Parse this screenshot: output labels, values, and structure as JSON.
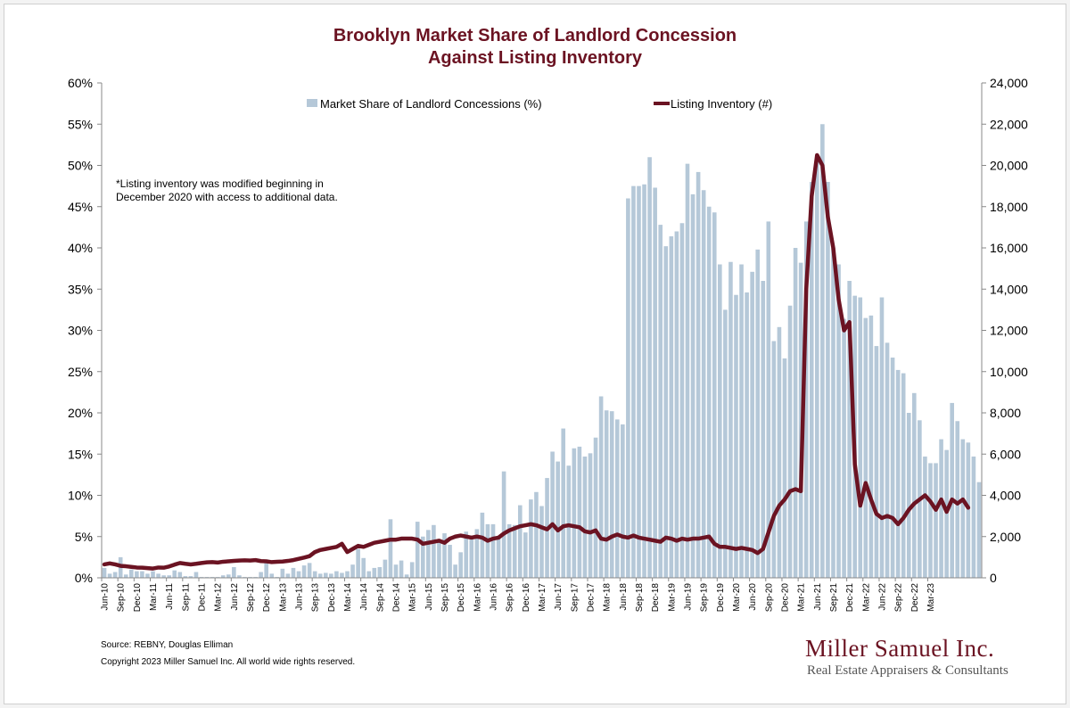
{
  "chart_data": {
    "type": "bar",
    "title_line1": "Brooklyn Market Share of Landlord Concession",
    "title_line2": "Against Listing Inventory",
    "note_line1": "*Listing inventory was modified beginning in",
    "note_line2": "December 2020 with access to additional data.",
    "source": "Source: REBNY, Douglas Elliman",
    "copyright": "Copyright 2023 Miller Samuel Inc.  All world wide rights reserved.",
    "brand": "Miller Samuel Inc.",
    "tagline": "Real Estate Appraisers & Consultants",
    "legend_position": "top-center",
    "grid": false,
    "colors": {
      "bars": "#b5c8d8",
      "line": "#6b1322",
      "title": "#6b1322"
    },
    "y_left": {
      "ylim": [
        0,
        60
      ],
      "ticks": [
        "0%",
        "5%",
        "10%",
        "15%",
        "20%",
        "25%",
        "30%",
        "35%",
        "40%",
        "45%",
        "50%",
        "55%",
        "60%"
      ]
    },
    "y_right": {
      "ylim": [
        0,
        24000
      ],
      "ticks": [
        "0",
        "2,000",
        "4,000",
        "6,000",
        "8,000",
        "10,000",
        "12,000",
        "14,000",
        "16,000",
        "18,000",
        "20,000",
        "22,000",
        "24,000"
      ]
    },
    "x_tick_labels": [
      "Jun-10",
      "Sep-10",
      "Dec-10",
      "Mar-11",
      "Jun-11",
      "Sep-11",
      "Dec-11",
      "Mar-12",
      "Jun-12",
      "Sep-12",
      "Dec-12",
      "Mar-13",
      "Jun-13",
      "Sep-13",
      "Dec-13",
      "Mar-14",
      "Jun-14",
      "Sep-14",
      "Dec-14",
      "Mar-15",
      "Jun-15",
      "Sep-15",
      "Dec-15",
      "Mar-16",
      "Jun-16",
      "Sep-16",
      "Dec-16",
      "Mar-17",
      "Jun-17",
      "Sep-17",
      "Dec-17",
      "Mar-18",
      "Jun-18",
      "Sep-18",
      "Dec-18",
      "Mar-19",
      "Jun-19",
      "Sep-19",
      "Dec-19",
      "Mar-20",
      "Jun-20",
      "Sep-20",
      "Dec-20",
      "Mar-21",
      "Jun-21",
      "Sep-21",
      "Dec-21",
      "Mar-22",
      "Jun-22",
      "Sep-22",
      "Dec-22",
      "Mar-23"
    ],
    "series": [
      {
        "name": "Market Share of Landlord Concessions (%)",
        "type": "bar",
        "axis": "left",
        "values": [
          1.2,
          0.5,
          0.7,
          2.5,
          0.4,
          1.0,
          0.8,
          0.8,
          0.5,
          0.8,
          0.5,
          0.3,
          0.3,
          0.9,
          0.7,
          0.2,
          0.2,
          0.7,
          0.1,
          0.1,
          0.1,
          0.1,
          0.3,
          0.4,
          1.3,
          0.3,
          0.1,
          0.1,
          0.1,
          0.7,
          1.9,
          0.5,
          0.1,
          1.1,
          0.5,
          1.2,
          0.8,
          1.5,
          1.8,
          0.8,
          0.5,
          0.6,
          0.5,
          0.8,
          0.6,
          0.8,
          1.6,
          3.5,
          2.4,
          0.8,
          1.2,
          1.3,
          2.2,
          7.1,
          1.6,
          2.1,
          0.4,
          1.9,
          6.8,
          5.0,
          5.8,
          6.4,
          4.5,
          5.4,
          4.0,
          1.6,
          3.1,
          5.6,
          5.0,
          5.9,
          7.9,
          6.5,
          6.5,
          5.0,
          12.9,
          6.5,
          6.4,
          8.8,
          5.5,
          9.5,
          10.4,
          8.7,
          12.1,
          15.3,
          14.1,
          18.1,
          13.6,
          15.7,
          15.9,
          14.7,
          15.1,
          17.0,
          22.0,
          20.3,
          20.2,
          19.2,
          18.6,
          46.0,
          47.5,
          47.5,
          47.7,
          51.0,
          47.3,
          42.8,
          40.2,
          41.4,
          42.0,
          43.0,
          50.2,
          46.5,
          49.2,
          47.0,
          45.0,
          44.3,
          38.0,
          32.5,
          38.3,
          34.3,
          38.0,
          34.6,
          37.1,
          39.8,
          36.0,
          43.2,
          28.7,
          30.4,
          26.6,
          33.0,
          40.0,
          38.2,
          43.2,
          48.0,
          50.8,
          55.0,
          48.0,
          40.0,
          38.0,
          31.4,
          36.0,
          34.2,
          34.0,
          31.5,
          31.8,
          28.1,
          34.0,
          28.5,
          26.7,
          25.2,
          24.8,
          20.0,
          22.4,
          19.1,
          14.7,
          13.9,
          13.9,
          16.8,
          15.5,
          21.2,
          19.0,
          16.8,
          16.4,
          14.7,
          11.6
        ]
      },
      {
        "name": "Listing Inventory (#)",
        "type": "line",
        "axis": "right",
        "values": [
          650,
          700,
          650,
          580,
          560,
          530,
          500,
          490,
          470,
          450,
          500,
          490,
          550,
          640,
          720,
          680,
          650,
          680,
          720,
          750,
          760,
          740,
          780,
          800,
          820,
          840,
          850,
          840,
          860,
          810,
          800,
          760,
          780,
          790,
          820,
          860,
          920,
          980,
          1050,
          1250,
          1350,
          1400,
          1450,
          1500,
          1650,
          1250,
          1400,
          1550,
          1500,
          1600,
          1700,
          1750,
          1800,
          1850,
          1850,
          1900,
          1900,
          1900,
          1850,
          1650,
          1700,
          1750,
          1800,
          1700,
          1900,
          2000,
          2050,
          2000,
          1950,
          2000,
          1950,
          1800,
          1900,
          1950,
          2150,
          2300,
          2400,
          2500,
          2550,
          2600,
          2550,
          2450,
          2350,
          2600,
          2300,
          2500,
          2550,
          2500,
          2450,
          2250,
          2200,
          2300,
          1900,
          1850,
          2000,
          2100,
          2000,
          1950,
          2050,
          1950,
          1900,
          1850,
          1800,
          1750,
          1950,
          1900,
          1800,
          1900,
          1850,
          1900,
          1900,
          1950,
          2000,
          1650,
          1500,
          1500,
          1450,
          1400,
          1450,
          1400,
          1350,
          1200,
          1400,
          2200,
          3000,
          3500,
          3800,
          4200,
          4300,
          4200,
          14000,
          18500,
          20500,
          20000,
          17500,
          16000,
          13500,
          12000,
          12400,
          5500,
          3500,
          4600,
          3800,
          3100,
          2900,
          3000,
          2900,
          2600,
          2900,
          3300,
          3600,
          3800,
          4000,
          3700,
          3300,
          3800,
          3200,
          3800,
          3600,
          3800,
          3400
        ]
      }
    ]
  }
}
